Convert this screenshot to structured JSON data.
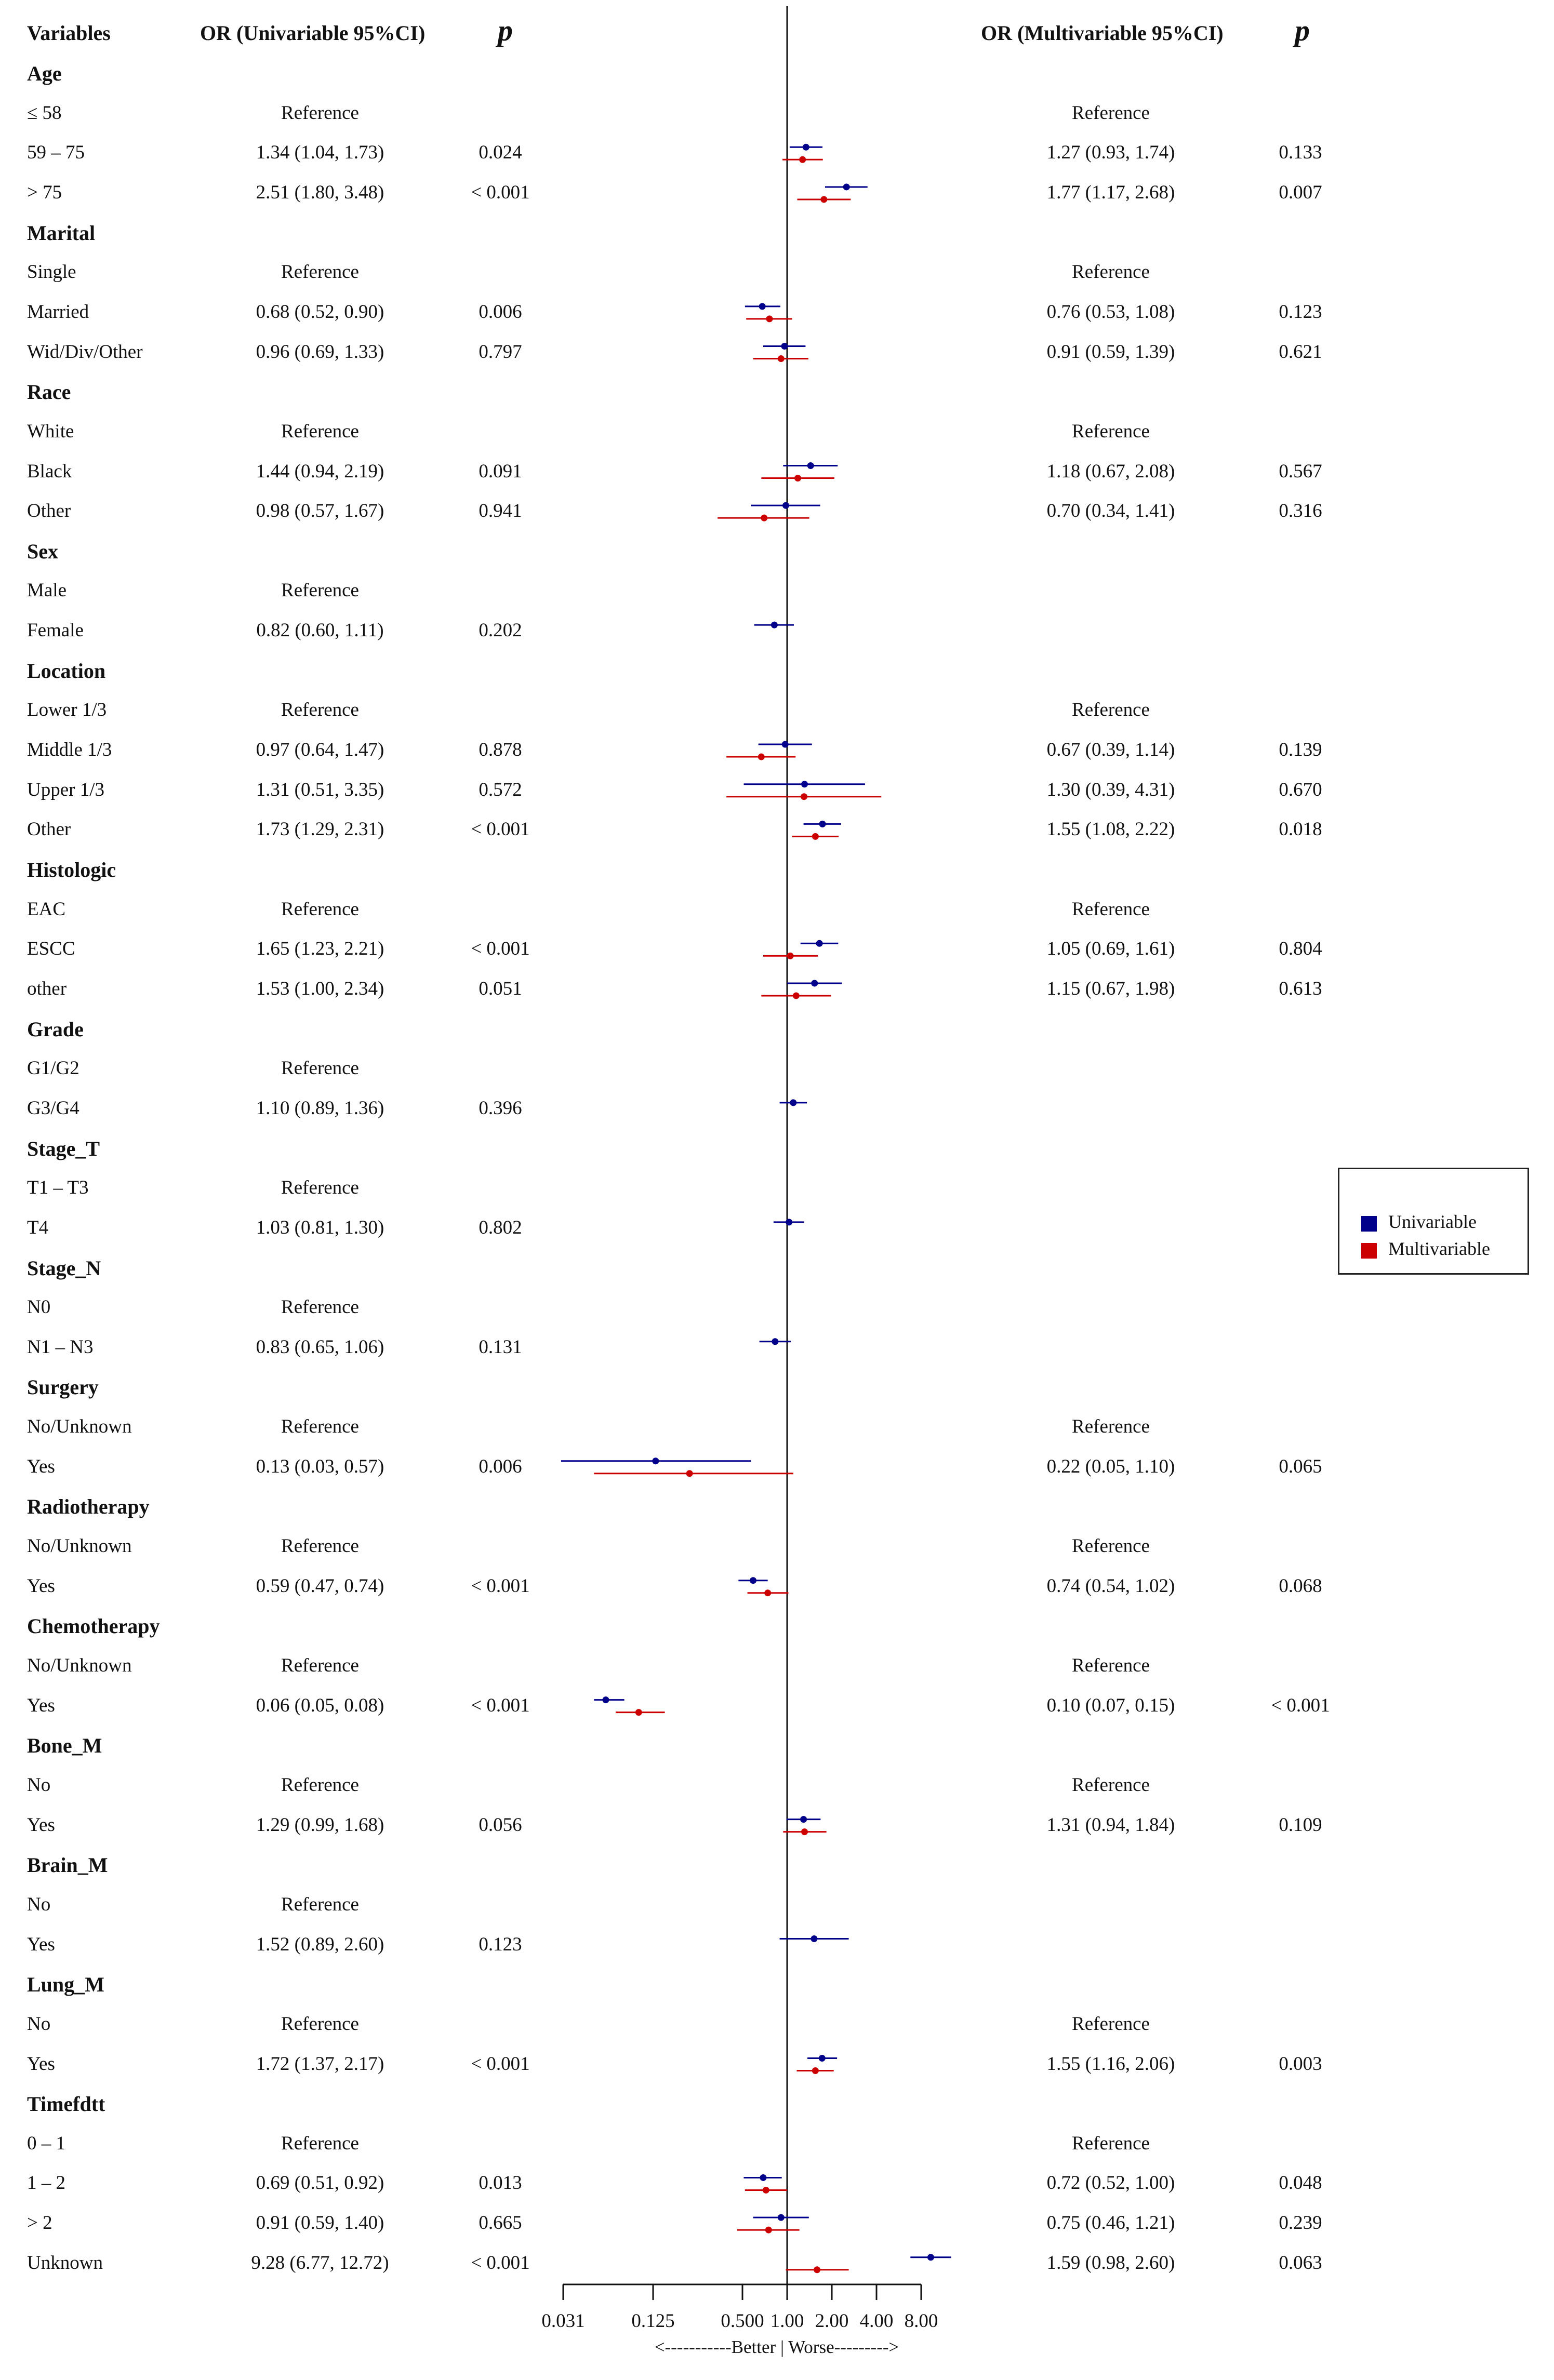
{
  "headers": {
    "variables": "Variables",
    "or_uni": "OR (Univariable 95%CI)",
    "p_uni": "p",
    "or_multi": "OR (Multivariable 95%CI)",
    "p_multi": "p"
  },
  "rows": [
    {
      "label": "Age",
      "group": true
    },
    {
      "label": "≤ 58",
      "or_uni": "Reference",
      "or_multi": "Reference"
    },
    {
      "label": "59 – 75",
      "or_uni": "1.34 (1.04, 1.73)",
      "p_uni": "0.024",
      "or_multi": "1.27 (0.93, 1.74)",
      "p_multi": "0.133"
    },
    {
      "label": "> 75",
      "or_uni": "2.51 (1.80, 3.48)",
      "p_uni": "< 0.001",
      "or_multi": "1.77 (1.17, 2.68)",
      "p_multi": "0.007"
    },
    {
      "label": "Marital",
      "group": true
    },
    {
      "label": "Single",
      "or_uni": "Reference",
      "or_multi": "Reference"
    },
    {
      "label": "Married",
      "or_uni": "0.68 (0.52, 0.90)",
      "p_uni": "0.006",
      "or_multi": "0.76 (0.53, 1.08)",
      "p_multi": "0.123"
    },
    {
      "label": "Wid/Div/Other",
      "or_uni": "0.96 (0.69, 1.33)",
      "p_uni": "0.797",
      "or_multi": "0.91 (0.59, 1.39)",
      "p_multi": "0.621"
    },
    {
      "label": "Race",
      "group": true
    },
    {
      "label": "White",
      "or_uni": "Reference",
      "or_multi": "Reference"
    },
    {
      "label": "Black",
      "or_uni": "1.44 (0.94, 2.19)",
      "p_uni": "0.091",
      "or_multi": "1.18 (0.67, 2.08)",
      "p_multi": "0.567"
    },
    {
      "label": "Other",
      "or_uni": "0.98 (0.57, 1.67)",
      "p_uni": "0.941",
      "or_multi": "0.70 (0.34, 1.41)",
      "p_multi": "0.316"
    },
    {
      "label": "Sex",
      "group": true
    },
    {
      "label": "Male",
      "or_uni": "Reference"
    },
    {
      "label": "Female",
      "or_uni": "0.82 (0.60, 1.11)",
      "p_uni": "0.202"
    },
    {
      "label": "Location",
      "group": true
    },
    {
      "label": "Lower 1/3",
      "or_uni": "Reference",
      "or_multi": "Reference"
    },
    {
      "label": "Middle 1/3",
      "or_uni": "0.97 (0.64, 1.47)",
      "p_uni": "0.878",
      "or_multi": "0.67 (0.39, 1.14)",
      "p_multi": "0.139"
    },
    {
      "label": "Upper 1/3",
      "or_uni": "1.31 (0.51, 3.35)",
      "p_uni": "0.572",
      "or_multi": "1.30 (0.39, 4.31)",
      "p_multi": "0.670"
    },
    {
      "label": "Other",
      "or_uni": "1.73 (1.29, 2.31)",
      "p_uni": "< 0.001",
      "or_multi": "1.55 (1.08, 2.22)",
      "p_multi": "0.018"
    },
    {
      "label": "Histologic",
      "group": true
    },
    {
      "label": "EAC",
      "or_uni": "Reference",
      "or_multi": "Reference"
    },
    {
      "label": "ESCC",
      "or_uni": "1.65 (1.23, 2.21)",
      "p_uni": "< 0.001",
      "or_multi": "1.05 (0.69, 1.61)",
      "p_multi": "0.804"
    },
    {
      "label": "other",
      "or_uni": "1.53 (1.00, 2.34)",
      "p_uni": "0.051",
      "or_multi": "1.15 (0.67, 1.98)",
      "p_multi": "0.613"
    },
    {
      "label": "Grade",
      "group": true
    },
    {
      "label": "G1/G2",
      "or_uni": "Reference"
    },
    {
      "label": "G3/G4",
      "or_uni": "1.10 (0.89, 1.36)",
      "p_uni": "0.396"
    },
    {
      "label": "Stage_T",
      "group": true
    },
    {
      "label": "T1 – T3",
      "or_uni": "Reference"
    },
    {
      "label": "T4",
      "or_uni": "1.03 (0.81, 1.30)",
      "p_uni": "0.802"
    },
    {
      "label": "Stage_N",
      "group": true
    },
    {
      "label": "N0",
      "or_uni": "Reference"
    },
    {
      "label": "N1 – N3",
      "or_uni": "0.83 (0.65, 1.06)",
      "p_uni": "0.131"
    },
    {
      "label": "Surgery",
      "group": true
    },
    {
      "label": "No/Unknown",
      "or_uni": "Reference",
      "or_multi": "Reference"
    },
    {
      "label": "Yes",
      "or_uni": "0.13 (0.03, 0.57)",
      "p_uni": "0.006",
      "or_multi": "0.22 (0.05, 1.10)",
      "p_multi": "0.065"
    },
    {
      "label": "Radiotherapy",
      "group": true
    },
    {
      "label": "No/Unknown",
      "or_uni": "Reference",
      "or_multi": "Reference"
    },
    {
      "label": "Yes",
      "or_uni": "0.59 (0.47, 0.74)",
      "p_uni": "< 0.001",
      "or_multi": "0.74 (0.54, 1.02)",
      "p_multi": "0.068"
    },
    {
      "label": "Chemotherapy",
      "group": true
    },
    {
      "label": "No/Unknown",
      "or_uni": "Reference",
      "or_multi": "Reference"
    },
    {
      "label": "Yes",
      "or_uni": "0.06 (0.05, 0.08)",
      "p_uni": "< 0.001",
      "or_multi": "0.10 (0.07, 0.15)",
      "p_multi": "< 0.001"
    },
    {
      "label": "Bone_M",
      "group": true
    },
    {
      "label": "No",
      "or_uni": "Reference",
      "or_multi": "Reference"
    },
    {
      "label": "Yes",
      "or_uni": "1.29 (0.99, 1.68)",
      "p_uni": "0.056",
      "or_multi": "1.31 (0.94, 1.84)",
      "p_multi": "0.109"
    },
    {
      "label": "Brain_M",
      "group": true
    },
    {
      "label": "No",
      "or_uni": "Reference"
    },
    {
      "label": "Yes",
      "or_uni": "1.52 (0.89, 2.60)",
      "p_uni": "0.123"
    },
    {
      "label": "Lung_M",
      "group": true
    },
    {
      "label": "No",
      "or_uni": "Reference",
      "or_multi": "Reference"
    },
    {
      "label": "Yes",
      "or_uni": "1.72 (1.37, 2.17)",
      "p_uni": "< 0.001",
      "or_multi": "1.55 (1.16, 2.06)",
      "p_multi": "0.003"
    },
    {
      "label": "Timefdtt",
      "group": true
    },
    {
      "label": "0 – 1",
      "or_uni": "Reference",
      "or_multi": "Reference"
    },
    {
      "label": "1 – 2",
      "or_uni": "0.69 (0.51, 0.92)",
      "p_uni": "0.013",
      "or_multi": "0.72 (0.52, 1.00)",
      "p_multi": "0.048"
    },
    {
      "label": "> 2",
      "or_uni": "0.91 (0.59, 1.40)",
      "p_uni": "0.665",
      "or_multi": "0.75 (0.46, 1.21)",
      "p_multi": "0.239"
    },
    {
      "label": "Unknown",
      "or_uni": "9.28 (6.77, 12.72)",
      "p_uni": "< 0.001",
      "or_multi": "1.59 (0.98, 2.60)",
      "p_multi": "0.063"
    }
  ],
  "legend": {
    "items": [
      {
        "label": "Univariable",
        "color": "#00008B"
      },
      {
        "label": "Multivariable",
        "color": "#CC0000"
      }
    ],
    "placement": "right"
  },
  "chart_data": {
    "type": "forest",
    "scale": "log2",
    "reference_line": 1,
    "xlim": [
      0.031,
      8
    ],
    "xticks": [
      "0.031",
      "0.125",
      "0.500",
      "1.00",
      "2.00",
      "4.00",
      "8.00"
    ],
    "xlabel": "<-----------Better  |  Worse--------->",
    "series": [
      {
        "name": "Univariable",
        "color": "#00008B",
        "points": [
          {
            "row": 2,
            "or": 1.34,
            "lo": 1.04,
            "hi": 1.73
          },
          {
            "row": 3,
            "or": 2.51,
            "lo": 1.8,
            "hi": 3.48
          },
          {
            "row": 6,
            "or": 0.68,
            "lo": 0.52,
            "hi": 0.9
          },
          {
            "row": 7,
            "or": 0.96,
            "lo": 0.69,
            "hi": 1.33
          },
          {
            "row": 10,
            "or": 1.44,
            "lo": 0.94,
            "hi": 2.19
          },
          {
            "row": 11,
            "or": 0.98,
            "lo": 0.57,
            "hi": 1.67
          },
          {
            "row": 14,
            "or": 0.82,
            "lo": 0.6,
            "hi": 1.11
          },
          {
            "row": 17,
            "or": 0.97,
            "lo": 0.64,
            "hi": 1.47
          },
          {
            "row": 18,
            "or": 1.31,
            "lo": 0.51,
            "hi": 3.35
          },
          {
            "row": 19,
            "or": 1.73,
            "lo": 1.29,
            "hi": 2.31
          },
          {
            "row": 22,
            "or": 1.65,
            "lo": 1.23,
            "hi": 2.21
          },
          {
            "row": 23,
            "or": 1.53,
            "lo": 1.0,
            "hi": 2.34
          },
          {
            "row": 26,
            "or": 1.1,
            "lo": 0.89,
            "hi": 1.36
          },
          {
            "row": 29,
            "or": 1.03,
            "lo": 0.81,
            "hi": 1.3
          },
          {
            "row": 32,
            "or": 0.83,
            "lo": 0.65,
            "hi": 1.06
          },
          {
            "row": 35,
            "or": 0.13,
            "lo": 0.03,
            "hi": 0.57
          },
          {
            "row": 38,
            "or": 0.59,
            "lo": 0.47,
            "hi": 0.74
          },
          {
            "row": 41,
            "or": 0.06,
            "lo": 0.05,
            "hi": 0.08
          },
          {
            "row": 44,
            "or": 1.29,
            "lo": 0.99,
            "hi": 1.68
          },
          {
            "row": 47,
            "or": 1.52,
            "lo": 0.89,
            "hi": 2.6
          },
          {
            "row": 50,
            "or": 1.72,
            "lo": 1.37,
            "hi": 2.17
          },
          {
            "row": 53,
            "or": 0.69,
            "lo": 0.51,
            "hi": 0.92
          },
          {
            "row": 54,
            "or": 0.91,
            "lo": 0.59,
            "hi": 1.4
          },
          {
            "row": 55,
            "or": 9.28,
            "lo": 6.77,
            "hi": 12.72
          }
        ]
      },
      {
        "name": "Multivariable",
        "color": "#CC0000",
        "points": [
          {
            "row": 2,
            "or": 1.27,
            "lo": 0.93,
            "hi": 1.74
          },
          {
            "row": 3,
            "or": 1.77,
            "lo": 1.17,
            "hi": 2.68
          },
          {
            "row": 6,
            "or": 0.76,
            "lo": 0.53,
            "hi": 1.08
          },
          {
            "row": 7,
            "or": 0.91,
            "lo": 0.59,
            "hi": 1.39
          },
          {
            "row": 10,
            "or": 1.18,
            "lo": 0.67,
            "hi": 2.08
          },
          {
            "row": 11,
            "or": 0.7,
            "lo": 0.34,
            "hi": 1.41
          },
          {
            "row": 17,
            "or": 0.67,
            "lo": 0.39,
            "hi": 1.14
          },
          {
            "row": 18,
            "or": 1.3,
            "lo": 0.39,
            "hi": 4.31
          },
          {
            "row": 19,
            "or": 1.55,
            "lo": 1.08,
            "hi": 2.22
          },
          {
            "row": 22,
            "or": 1.05,
            "lo": 0.69,
            "hi": 1.61
          },
          {
            "row": 23,
            "or": 1.15,
            "lo": 0.67,
            "hi": 1.98
          },
          {
            "row": 35,
            "or": 0.22,
            "lo": 0.05,
            "hi": 1.1
          },
          {
            "row": 38,
            "or": 0.74,
            "lo": 0.54,
            "hi": 1.02
          },
          {
            "row": 41,
            "or": 0.1,
            "lo": 0.07,
            "hi": 0.15
          },
          {
            "row": 44,
            "or": 1.31,
            "lo": 0.94,
            "hi": 1.84
          },
          {
            "row": 50,
            "or": 1.55,
            "lo": 1.16,
            "hi": 2.06
          },
          {
            "row": 53,
            "or": 0.72,
            "lo": 0.52,
            "hi": 1.0
          },
          {
            "row": 54,
            "or": 0.75,
            "lo": 0.46,
            "hi": 1.21
          },
          {
            "row": 55,
            "or": 1.59,
            "lo": 0.98,
            "hi": 2.6
          }
        ]
      }
    ]
  }
}
